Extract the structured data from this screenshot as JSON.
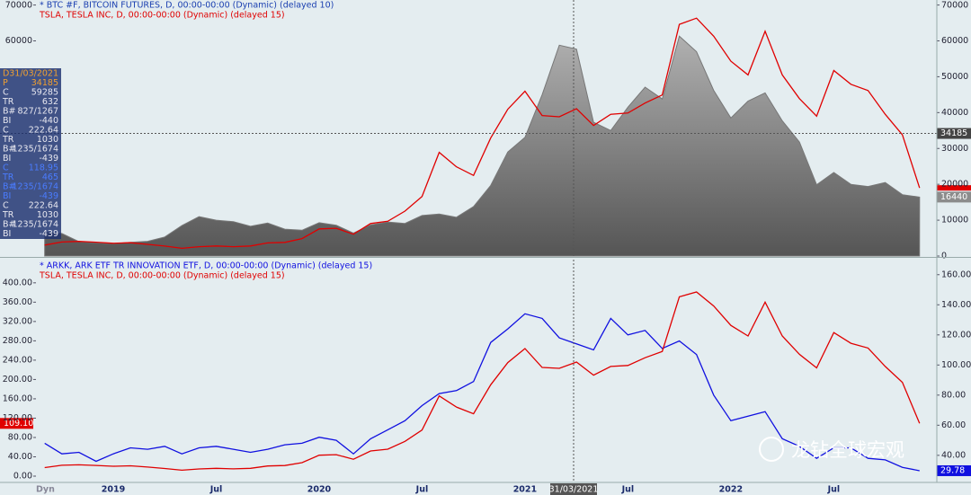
{
  "chart_data": [
    {
      "type": "area",
      "series": [
        {
          "name": "* BTC #F, BITCOIN FUTURES, D, 00:00-00:00 (Dynamic) (delayed 10)",
          "color": "#1a3fb0",
          "fill": "#8c8c8c",
          "values": [
            6600,
            6300,
            4000,
            3700,
            3450,
            3800,
            4100,
            5300,
            8500,
            11000,
            10000,
            9600,
            8300,
            9200,
            7500,
            7200,
            9300,
            8600,
            6400,
            8700,
            9500,
            9100,
            11300,
            11700,
            10800,
            13800,
            19700,
            29000,
            33100,
            45000,
            58800,
            57700,
            37300,
            35000,
            41500,
            47100,
            43800,
            61300,
            57000,
            46200,
            38500,
            43200,
            45500,
            37700,
            31800,
            19900,
            23300,
            20000,
            19400,
            20500,
            17100,
            16440
          ]
        },
        {
          "name": "TSLA, TESLA INC, D, 00:00-00:00 (Dynamic) (delayed 15)",
          "color": "#e00000",
          "axis": "y2",
          "values": [
            17.6,
            22.5,
            23.4,
            22.2,
            20.5,
            21.3,
            18.7,
            15.9,
            12.3,
            14.9,
            16.1,
            15.0,
            16.1,
            21.0,
            21.9,
            27.9,
            43.4,
            44.5,
            34.9,
            52.1,
            55.7,
            72.0,
            95.4,
            166,
            143,
            129,
            189,
            235,
            264,
            225,
            223,
            236,
            209,
            227,
            229,
            245,
            258,
            371,
            381,
            352,
            312,
            290,
            360,
            290,
            252,
            224,
            297,
            275,
            265,
            227,
            194,
            109.1
          ]
        }
      ],
      "ylim": [
        0,
        71400
      ],
      "yticks": [
        0,
        10000,
        20000,
        30000,
        40000,
        50000,
        60000,
        70000
      ],
      "yticks_left": [
        60000,
        70000
      ],
      "y2lim": [
        0,
        410
      ],
      "crosshair_value": 34185
    },
    {
      "type": "line",
      "series": [
        {
          "name": "* ARKK, ARK ETF TR INNOVATION ETF, D, 00:00-00:00 (Dynamic) (delayed 15)",
          "color": "#1010e0",
          "axis": "y2",
          "values": [
            48,
            41,
            42,
            36,
            41,
            45,
            44,
            46,
            41,
            45,
            46,
            44,
            42,
            44,
            47,
            48,
            52,
            50,
            41,
            51,
            57,
            63,
            73,
            81,
            83,
            89,
            115,
            124,
            134,
            131,
            118,
            114,
            110,
            131,
            120,
            123,
            111,
            116,
            107,
            80,
            63,
            66,
            69,
            51,
            46,
            38,
            45,
            45,
            38,
            37,
            32,
            29.78
          ]
        },
        {
          "name": "TSLA, TESLA INC, D, 00:00-00:00 (Dynamic) (delayed 15)",
          "color": "#e00000",
          "values": [
            17.6,
            22.5,
            23.4,
            22.2,
            20.5,
            21.3,
            18.7,
            15.9,
            12.3,
            14.9,
            16.1,
            15.0,
            16.1,
            21.0,
            21.9,
            27.9,
            43.4,
            44.5,
            34.9,
            52.1,
            55.7,
            72.0,
            95.4,
            166,
            143,
            129,
            189,
            235,
            264,
            225,
            223,
            236,
            209,
            227,
            229,
            245,
            258,
            371,
            381,
            352,
            312,
            290,
            360,
            290,
            252,
            224,
            297,
            275,
            265,
            227,
            194,
            109.1
          ],
          "value_labels": [
            null,
            null,
            null,
            null,
            null,
            null,
            null,
            null,
            null,
            null,
            null,
            null,
            null,
            null,
            null,
            null,
            null,
            null,
            null,
            null,
            null,
            null,
            null,
            null,
            null,
            null,
            null,
            null,
            null,
            null,
            null,
            null,
            null,
            null,
            null,
            null,
            null,
            null,
            null,
            null,
            null,
            null,
            null,
            null,
            null,
            null,
            null,
            null,
            null,
            null,
            null,
            "109.10"
          ]
        }
      ],
      "categories": [
        null,
        null,
        null,
        null,
        "2019",
        null,
        null,
        null,
        null,
        null,
        "Jul",
        null,
        null,
        null,
        null,
        null,
        "2020",
        null,
        null,
        null,
        null,
        null,
        "Jul",
        null,
        null,
        null,
        null,
        null,
        "2021",
        null,
        null,
        null,
        null,
        null,
        "Jul",
        null,
        null,
        null,
        null,
        null,
        "2022",
        null,
        null,
        null,
        null,
        null,
        "Jul",
        null,
        null,
        null,
        null,
        null
      ],
      "ylim": [
        -13,
        448
      ],
      "yticks": [
        {
          "value": 0,
          "label": "0.00"
        },
        {
          "value": 40,
          "label": "40.00"
        },
        {
          "value": 80,
          "label": "80.00"
        },
        {
          "value": 120,
          "label": "120.00"
        },
        {
          "value": 160,
          "label": "160.00"
        },
        {
          "value": 200,
          "label": "200.00"
        },
        {
          "value": 240,
          "label": "240.00"
        },
        {
          "value": 280,
          "label": "280.00"
        },
        {
          "value": 320,
          "label": "320.00"
        },
        {
          "value": 360,
          "label": "360.00"
        },
        {
          "value": 400,
          "label": "400.00"
        }
      ],
      "y2lim": [
        22,
        170
      ],
      "y2ticks": [
        {
          "value": 40,
          "label": "40.00"
        },
        {
          "value": 60,
          "label": "60.00"
        },
        {
          "value": 80,
          "label": "80.00"
        },
        {
          "value": 100,
          "label": "100.00"
        },
        {
          "value": 120,
          "label": "120.00"
        },
        {
          "value": 140,
          "label": "140.00"
        },
        {
          "value": 160,
          "label": "160.00"
        }
      ],
      "crosshair_date": "31/03/2021"
    }
  ],
  "data_window": [
    [
      "D",
      "31/03/2021"
    ],
    [
      "P",
      "34185"
    ],
    [
      "C",
      "59285"
    ],
    [
      "TR",
      "632"
    ],
    [
      "B#",
      "827/1267"
    ],
    [
      "BI",
      "-440"
    ],
    [
      "C",
      "222.64"
    ],
    [
      "TR",
      "1030"
    ],
    [
      "B#",
      "1235/1674"
    ],
    [
      "BI",
      "-439"
    ],
    [
      "C",
      "118.95"
    ],
    [
      "TR",
      "465"
    ],
    [
      "B#",
      "1235/1674"
    ],
    [
      "BI",
      "-439"
    ],
    [
      "C",
      "222.64"
    ],
    [
      "TR",
      "1030"
    ],
    [
      "B#",
      "1235/1674"
    ],
    [
      "BI",
      "-439"
    ]
  ],
  "footer_label": "Dyn",
  "watermark": "龙钻全球宏观"
}
